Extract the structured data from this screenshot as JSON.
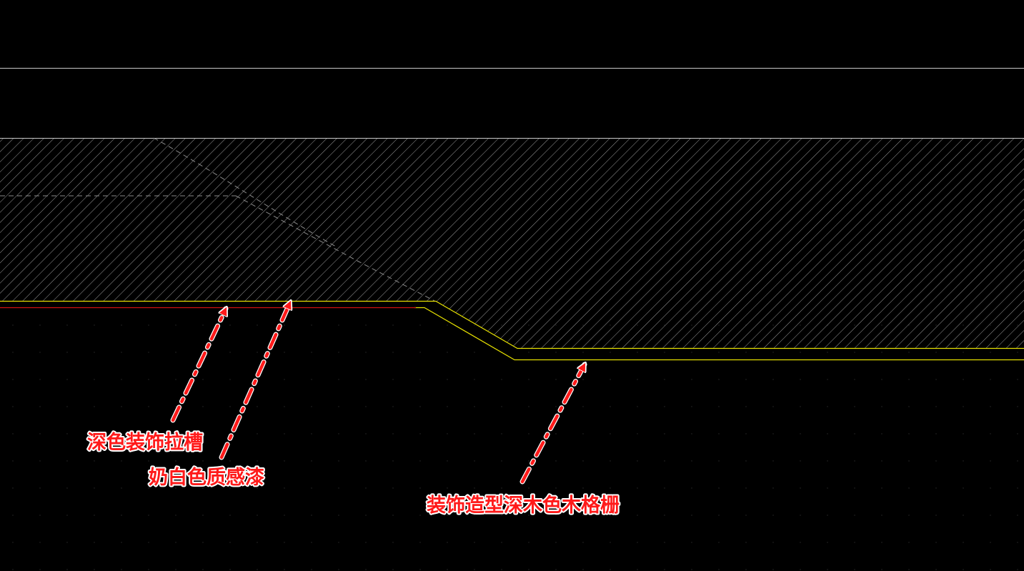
{
  "callouts": [
    {
      "id": "dark-groove",
      "text": "深色装饰拉槽"
    },
    {
      "id": "milky-white-paint",
      "text": "奶白色质感漆"
    },
    {
      "id": "wood-grille",
      "text": "装饰造型深木色木格栅"
    }
  ],
  "colors": {
    "background": "#000000",
    "outline": "#c8c8c8",
    "hatch": "#9a9a9a",
    "hidden_line": "#8a8a8a",
    "yellow_line": "#e6e000",
    "red_line": "#d01010",
    "callout": "#ff1a1a",
    "callout_halo": "#ffffff"
  }
}
